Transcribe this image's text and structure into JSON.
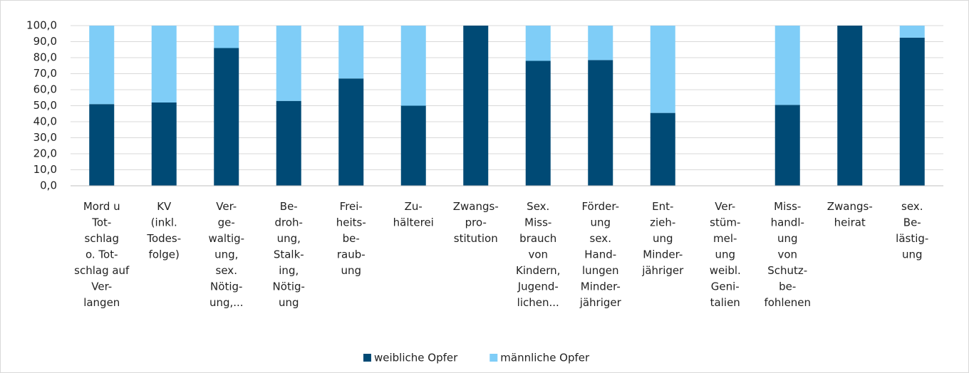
{
  "chart_data": {
    "type": "stacked_bar",
    "categories": [
      [
        "Mord u",
        "Tot-",
        "schlag",
        "o. Tot-",
        "schlag auf",
        "Ver-",
        "langen"
      ],
      [
        "KV",
        "(inkl.",
        "Todes-",
        "folge)"
      ],
      [
        "Ver-",
        "ge-",
        "waltig-",
        "ung,",
        "sex.",
        "Nötig-",
        "ung,..."
      ],
      [
        "Be-",
        "droh-",
        "ung,",
        "Stalk-",
        "ing,",
        "Nötig-",
        "ung"
      ],
      [
        "Frei-",
        "heits-",
        "be-",
        "raub-",
        "ung"
      ],
      [
        "Zu-",
        "hälterei"
      ],
      [
        "Zwangs-",
        "pro-",
        "stitution"
      ],
      [
        "Sex.",
        "Miss-",
        "brauch",
        "von",
        "Kindern,",
        "Jugend-",
        "lichen..."
      ],
      [
        "Förder-",
        "ung",
        "sex.",
        "Hand-",
        "lungen",
        "Minder-",
        "jähriger"
      ],
      [
        "Ent-",
        "zieh-",
        "ung",
        "Minder-",
        "jähriger"
      ],
      [
        "Ver-",
        "stüm-",
        "mel-",
        "ung",
        "weibl.",
        "Geni-",
        "talien"
      ],
      [
        "Miss-",
        "handl-",
        "ung",
        "von",
        "Schutz-",
        "be-",
        "fohlenen"
      ],
      [
        "Zwangs-",
        "heirat"
      ],
      [
        "sex.",
        "Be-",
        "lästig-",
        "ung"
      ]
    ],
    "series": [
      {
        "name": "weibliche Opfer",
        "color": "#004a75",
        "values": [
          51,
          52,
          86,
          53,
          67,
          50,
          100,
          78,
          78.5,
          45.5,
          null,
          50.5,
          100,
          92.5
        ]
      },
      {
        "name": "männliche Opfer",
        "color": "#7fcdf7",
        "values": [
          49,
          48,
          14,
          47,
          33,
          50,
          0,
          22,
          21.5,
          54.5,
          null,
          49.5,
          0,
          7.5
        ]
      }
    ],
    "ylim": [
      0,
      100
    ],
    "yticks": [
      {
        "value": 0,
        "label": "0,0"
      },
      {
        "value": 10,
        "label": "10,0"
      },
      {
        "value": 20,
        "label": "20,0"
      },
      {
        "value": 30,
        "label": "30,0"
      },
      {
        "value": 40,
        "label": "40,0"
      },
      {
        "value": 50,
        "label": "50,0"
      },
      {
        "value": 60,
        "label": "60,0"
      },
      {
        "value": 70,
        "label": "70,0"
      },
      {
        "value": 80,
        "label": "80,0"
      },
      {
        "value": 90,
        "label": "90,0"
      },
      {
        "value": 100,
        "label": "100,0"
      }
    ],
    "grid": true,
    "legend": "bottom"
  }
}
